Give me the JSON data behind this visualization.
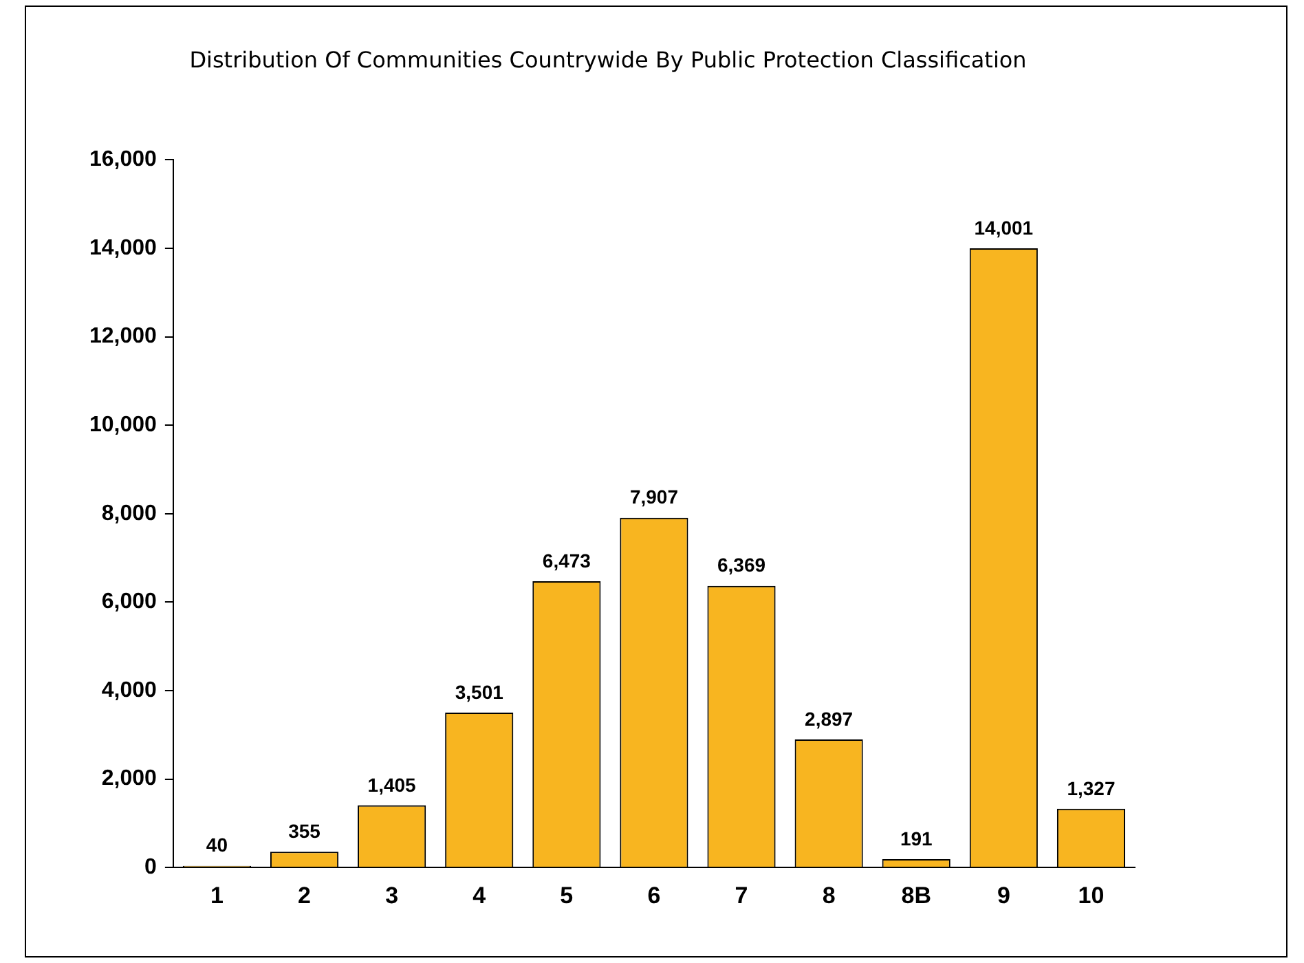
{
  "chart_data": {
    "type": "bar",
    "title": "Distribution Of Communities Countrywide By Public Protection Classification",
    "categories": [
      "1",
      "2",
      "3",
      "4",
      "5",
      "6",
      "7",
      "8",
      "8B",
      "9",
      "10"
    ],
    "values": [
      40,
      355,
      1405,
      3501,
      6473,
      7907,
      6369,
      2897,
      191,
      14001,
      1327
    ],
    "value_labels": [
      "40",
      "355",
      "1,405",
      "3,501",
      "6,473",
      "7,907",
      "6,369",
      "2,897",
      "191",
      "14,001",
      "1,327"
    ],
    "color": "#f8b520",
    "ylim": [
      0,
      16000
    ],
    "yticks": [
      0,
      {
        "value": 2000,
        "label": "2,000"
      },
      {
        "value": 4000,
        "label": "4,000"
      },
      {
        "value": 6000,
        "label": "6,000"
      },
      {
        "value": 8000,
        "label": "8,000"
      },
      {
        "value": 10000,
        "label": "10,000"
      },
      {
        "value": 12000,
        "label": "12,000"
      },
      {
        "value": 14000,
        "label": "14,000"
      },
      {
        "value": 16000,
        "label": "16,000"
      }
    ],
    "grid": false,
    "legend": false
  }
}
